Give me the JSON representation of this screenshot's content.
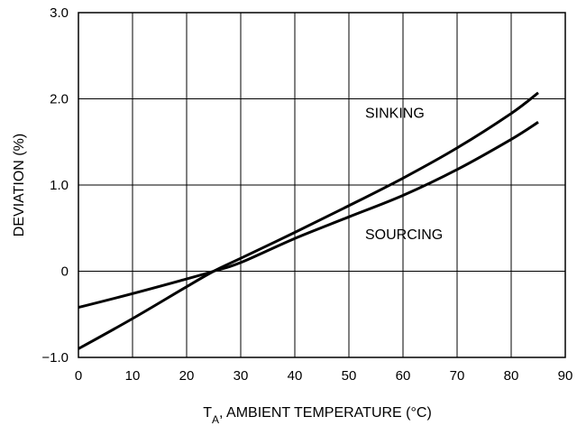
{
  "chart_data": {
    "type": "line",
    "title": "",
    "xlabel_main": "T",
    "xlabel_sub": "A",
    "xlabel_rest": ", AMBIENT TEMPERATURE (°C)",
    "ylabel": "DEVIATION (%)",
    "xlim": [
      0,
      90
    ],
    "ylim": [
      -1.0,
      3.0
    ],
    "xticks": [
      0,
      10,
      20,
      30,
      40,
      50,
      60,
      70,
      80,
      90
    ],
    "xtick_labels": [
      "0",
      "10",
      "20",
      "30",
      "40",
      "50",
      "60",
      "70",
      "80",
      "90"
    ],
    "yticks": [
      -1.0,
      0,
      1.0,
      2.0,
      3.0
    ],
    "ytick_labels": [
      "−1.0",
      "0",
      "1.0",
      "2.0",
      "3.0"
    ],
    "grid": true,
    "series": [
      {
        "name": "SINKING",
        "x": [
          0,
          10,
          20,
          25,
          30,
          40,
          50,
          60,
          70,
          80,
          85
        ],
        "y": [
          -0.9,
          -0.55,
          -0.18,
          0.0,
          0.15,
          0.45,
          0.76,
          1.08,
          1.43,
          1.83,
          2.07
        ]
      },
      {
        "name": "SOURCING",
        "x": [
          0,
          10,
          20,
          25,
          30,
          40,
          50,
          60,
          70,
          80,
          85
        ],
        "y": [
          -0.42,
          -0.26,
          -0.09,
          0.0,
          0.1,
          0.38,
          0.63,
          0.88,
          1.18,
          1.53,
          1.73
        ]
      }
    ],
    "annotations": [
      {
        "text": "SINKING",
        "x": 53,
        "y": 1.78
      },
      {
        "text": "SOURCING",
        "x": 53,
        "y": 0.37
      }
    ]
  }
}
